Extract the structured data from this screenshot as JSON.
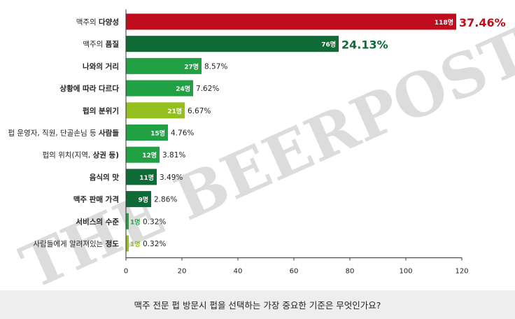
{
  "chart_data": {
    "type": "bar",
    "orientation": "horizontal",
    "categories": [
      {
        "pre": "맥주의 ",
        "bold": "다양성"
      },
      {
        "pre": "맥주의 ",
        "bold": "품질"
      },
      {
        "pre": "",
        "bold": "나와의 거리"
      },
      {
        "pre": "",
        "bold": "상황에 따라 다르다"
      },
      {
        "pre": "",
        "bold": "펍의 분위기"
      },
      {
        "pre": "펍 운영자, 직원, 단골손님 등 ",
        "bold": "사람들"
      },
      {
        "pre": "펍의 위치(지역, ",
        "bold": "상권 등)"
      },
      {
        "pre": "",
        "bold": "음식의 맛"
      },
      {
        "pre": "",
        "bold": "맥주 판매 가격"
      },
      {
        "pre": "",
        "bold": "서비스의 수준"
      },
      {
        "pre": "사람들에게 알려져있는 ",
        "bold": "정도"
      }
    ],
    "values": [
      118,
      76,
      27,
      24,
      21,
      15,
      12,
      11,
      9,
      1,
      1
    ],
    "value_labels": [
      "118명",
      "76명",
      "27명",
      "24명",
      "21명",
      "15명",
      "12명",
      "11명",
      "9명",
      "1명",
      "1명"
    ],
    "percent_labels": [
      "37.46%",
      "24.13%",
      "8.57%",
      "7.62%",
      "6.67%",
      "4.76%",
      "3.81%",
      "3.49%",
      "2.86%",
      "0.32%",
      "0.32%"
    ],
    "bar_colors": [
      "#c00d1e",
      "#0e6b35",
      "#21a044",
      "#21a044",
      "#93c01f",
      "#21a044",
      "#21a044",
      "#0e6b35",
      "#0e6b35",
      "#21a044",
      "#93c01f"
    ],
    "percent_colors": [
      "#c00d1e",
      "#0e6b35",
      "#222222",
      "#222222",
      "#222222",
      "#222222",
      "#222222",
      "#222222",
      "#222222",
      "#222222",
      "#222222"
    ],
    "xlim": [
      0,
      120
    ],
    "xticks": [
      0,
      20,
      40,
      60,
      80,
      100,
      120
    ],
    "grid": false,
    "watermark": "THE BEERPOST"
  },
  "footer": {
    "question": "맥주 전문 펍 방문시 펍을 선택하는 가장 중요한 기준은 무엇인가요?"
  }
}
